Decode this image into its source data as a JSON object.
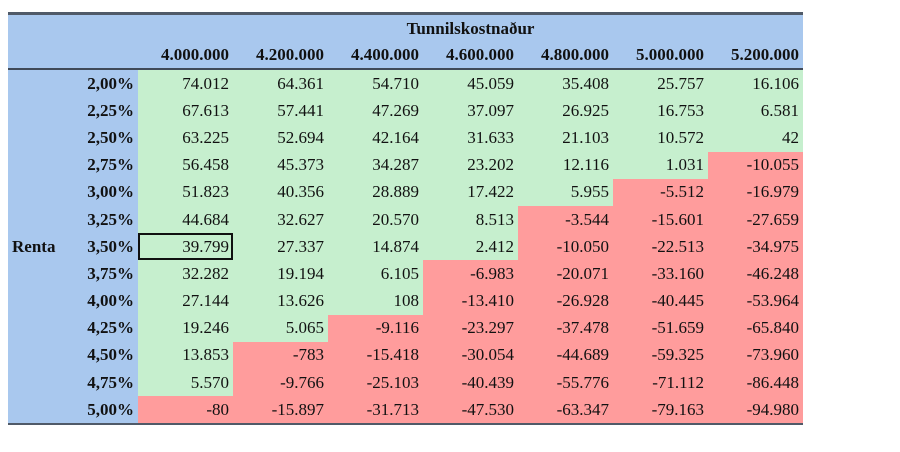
{
  "table": {
    "title": "Tunnilskostnaður",
    "row_axis_label": "Renta",
    "columns": [
      "4.000.000",
      "4.200.000",
      "4.400.000",
      "4.600.000",
      "4.800.000",
      "5.000.000",
      "5.200.000"
    ],
    "rows": [
      {
        "rate": "2,00%",
        "values": [
          "74.012",
          "64.361",
          "54.710",
          "45.059",
          "35.408",
          "25.757",
          "16.106"
        ],
        "status": [
          "g",
          "g",
          "g",
          "g",
          "g",
          "g",
          "g"
        ]
      },
      {
        "rate": "2,25%",
        "values": [
          "67.613",
          "57.441",
          "47.269",
          "37.097",
          "26.925",
          "16.753",
          "6.581"
        ],
        "status": [
          "g",
          "g",
          "g",
          "g",
          "g",
          "g",
          "g"
        ]
      },
      {
        "rate": "2,50%",
        "values": [
          "63.225",
          "52.694",
          "42.164",
          "31.633",
          "21.103",
          "10.572",
          "42"
        ],
        "status": [
          "g",
          "g",
          "g",
          "g",
          "g",
          "g",
          "g"
        ]
      },
      {
        "rate": "2,75%",
        "values": [
          "56.458",
          "45.373",
          "34.287",
          "23.202",
          "12.116",
          "1.031",
          "-10.055"
        ],
        "status": [
          "g",
          "g",
          "g",
          "g",
          "g",
          "g",
          "r"
        ]
      },
      {
        "rate": "3,00%",
        "values": [
          "51.823",
          "40.356",
          "28.889",
          "17.422",
          "5.955",
          "-5.512",
          "-16.979"
        ],
        "status": [
          "g",
          "g",
          "g",
          "g",
          "g",
          "r",
          "r"
        ]
      },
      {
        "rate": "3,25%",
        "values": [
          "44.684",
          "32.627",
          "20.570",
          "8.513",
          "-3.544",
          "-15.601",
          "-27.659"
        ],
        "status": [
          "g",
          "g",
          "g",
          "g",
          "r",
          "r",
          "r"
        ]
      },
      {
        "rate": "3,50%",
        "values": [
          "39.799",
          "27.337",
          "14.874",
          "2.412",
          "-10.050",
          "-22.513",
          "-34.975"
        ],
        "status": [
          "g",
          "g",
          "g",
          "g",
          "r",
          "r",
          "r"
        ]
      },
      {
        "rate": "3,75%",
        "values": [
          "32.282",
          "19.194",
          "6.105",
          "-6.983",
          "-20.071",
          "-33.160",
          "-46.248"
        ],
        "status": [
          "g",
          "g",
          "g",
          "r",
          "r",
          "r",
          "r"
        ]
      },
      {
        "rate": "4,00%",
        "values": [
          "27.144",
          "13.626",
          "108",
          "-13.410",
          "-26.928",
          "-40.445",
          "-53.964"
        ],
        "status": [
          "g",
          "g",
          "g",
          "r",
          "r",
          "r",
          "r"
        ]
      },
      {
        "rate": "4,25%",
        "values": [
          "19.246",
          "5.065",
          "-9.116",
          "-23.297",
          "-37.478",
          "-51.659",
          "-65.840"
        ],
        "status": [
          "g",
          "g",
          "r",
          "r",
          "r",
          "r",
          "r"
        ]
      },
      {
        "rate": "4,50%",
        "values": [
          "13.853",
          "-783",
          "-15.418",
          "-30.054",
          "-44.689",
          "-59.325",
          "-73.960"
        ],
        "status": [
          "g",
          "r",
          "r",
          "r",
          "r",
          "r",
          "r"
        ]
      },
      {
        "rate": "4,75%",
        "values": [
          "5.570",
          "-9.766",
          "-25.103",
          "-40.439",
          "-55.776",
          "-71.112",
          "-86.448"
        ],
        "status": [
          "g",
          "r",
          "r",
          "r",
          "r",
          "r",
          "r"
        ]
      },
      {
        "rate": "5,00%",
        "values": [
          "-80",
          "-15.897",
          "-31.713",
          "-47.530",
          "-63.347",
          "-79.163",
          "-94.980"
        ],
        "status": [
          "r",
          "r",
          "r",
          "r",
          "r",
          "r",
          "r"
        ]
      }
    ],
    "selected_cell": {
      "row": 6,
      "col": 0
    },
    "colors": {
      "header_bg": "#a9c8ee",
      "positive_bg": "#c6efce",
      "negative_bg": "#ff9c9c"
    }
  }
}
